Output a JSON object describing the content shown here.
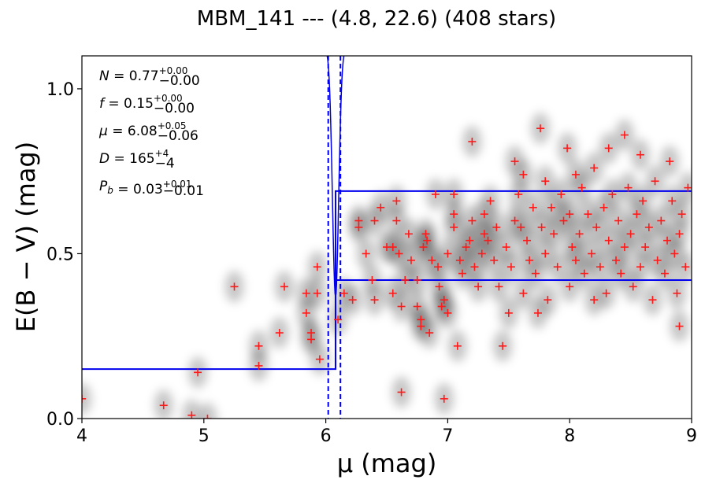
{
  "chart_data": {
    "type": "scatter",
    "title": "MBM_141 --- (4.8, 22.6) (408 stars)",
    "xlabel": "μ (mag)",
    "ylabel": "E(B − V) (mag)",
    "xlim": [
      4,
      9
    ],
    "ylim": [
      0,
      1.1
    ],
    "xticks": [
      "4",
      "5",
      "6",
      "7",
      "8",
      "9"
    ],
    "yticks": [
      "0.0",
      "0.5",
      "1.0"
    ],
    "grid": false,
    "colors": {
      "points": "#ff1a1a",
      "model": "#0000ee",
      "density": "#000000"
    },
    "annotations": [
      {
        "var": "N",
        "val": "0.77",
        "sup": "+0.00",
        "sub": "−0.00"
      },
      {
        "var": "f",
        "val": "0.15",
        "sup": "+0.00",
        "sub": "−0.00"
      },
      {
        "var": "μ",
        "val": "6.08",
        "sup": "+0.05",
        "sub": "−0.06"
      },
      {
        "var": "D",
        "val": "165",
        "sup": "+4",
        "sub": "−4"
      },
      {
        "var": "P",
        "varsub": "b",
        "val": "0.03",
        "sup": "+0.01",
        "sub": "−0.01"
      }
    ],
    "model_step": {
      "x": [
        4.0,
        6.08,
        6.08,
        9.0
      ],
      "y_center": [
        0.15,
        0.15,
        0.42,
        0.42
      ],
      "x_upper": [
        6.08,
        6.08,
        6.12,
        6.12,
        9.0
      ],
      "y_upper": [
        0.15,
        0.69,
        0.69,
        0.69,
        0.69
      ]
    },
    "vlines_dashed": [
      6.02,
      6.12
    ],
    "points": [
      [
        4.0,
        0.06
      ],
      [
        4.67,
        0.04
      ],
      [
        4.95,
        0.14
      ],
      [
        4.9,
        0.01
      ],
      [
        5.03,
        0.0
      ],
      [
        5.25,
        0.4
      ],
      [
        5.45,
        0.22
      ],
      [
        5.45,
        0.16
      ],
      [
        5.62,
        0.26
      ],
      [
        5.66,
        0.4
      ],
      [
        5.84,
        0.38
      ],
      [
        5.84,
        0.32
      ],
      [
        5.88,
        0.24
      ],
      [
        5.88,
        0.26
      ],
      [
        5.93,
        0.46
      ],
      [
        5.93,
        0.38
      ],
      [
        5.95,
        0.18
      ],
      [
        6.1,
        0.3
      ],
      [
        6.15,
        0.38
      ],
      [
        6.22,
        0.36
      ],
      [
        6.27,
        0.6
      ],
      [
        6.27,
        0.58
      ],
      [
        6.33,
        0.5
      ],
      [
        6.38,
        0.42
      ],
      [
        6.4,
        0.36
      ],
      [
        6.4,
        0.6
      ],
      [
        6.45,
        0.64
      ],
      [
        6.5,
        0.52
      ],
      [
        6.55,
        0.52
      ],
      [
        6.55,
        0.38
      ],
      [
        6.58,
        0.66
      ],
      [
        6.58,
        0.6
      ],
      [
        6.6,
        0.5
      ],
      [
        6.62,
        0.34
      ],
      [
        6.62,
        0.08
      ],
      [
        6.65,
        0.42
      ],
      [
        6.68,
        0.56
      ],
      [
        6.7,
        0.48
      ],
      [
        6.75,
        0.42
      ],
      [
        6.75,
        0.34
      ],
      [
        6.78,
        0.28
      ],
      [
        6.78,
        0.3
      ],
      [
        6.8,
        0.52
      ],
      [
        6.82,
        0.56
      ],
      [
        6.83,
        0.54
      ],
      [
        6.85,
        0.26
      ],
      [
        6.87,
        0.48
      ],
      [
        6.9,
        0.68
      ],
      [
        6.92,
        0.46
      ],
      [
        6.93,
        0.4
      ],
      [
        6.95,
        0.34
      ],
      [
        6.97,
        0.36
      ],
      [
        6.97,
        0.06
      ],
      [
        7.0,
        0.32
      ],
      [
        7.0,
        0.5
      ],
      [
        7.05,
        0.62
      ],
      [
        7.05,
        0.58
      ],
      [
        7.05,
        0.68
      ],
      [
        7.08,
        0.22
      ],
      [
        7.1,
        0.48
      ],
      [
        7.12,
        0.44
      ],
      [
        7.15,
        0.52
      ],
      [
        7.18,
        0.54
      ],
      [
        7.2,
        0.84
      ],
      [
        7.2,
        0.6
      ],
      [
        7.22,
        0.46
      ],
      [
        7.25,
        0.4
      ],
      [
        7.28,
        0.5
      ],
      [
        7.3,
        0.56
      ],
      [
        7.3,
        0.62
      ],
      [
        7.33,
        0.54
      ],
      [
        7.35,
        0.66
      ],
      [
        7.38,
        0.48
      ],
      [
        7.4,
        0.58
      ],
      [
        7.42,
        0.4
      ],
      [
        7.45,
        0.22
      ],
      [
        7.48,
        0.52
      ],
      [
        7.5,
        0.32
      ],
      [
        7.52,
        0.46
      ],
      [
        7.55,
        0.78
      ],
      [
        7.55,
        0.6
      ],
      [
        7.58,
        0.68
      ],
      [
        7.6,
        0.58
      ],
      [
        7.62,
        0.74
      ],
      [
        7.62,
        0.38
      ],
      [
        7.65,
        0.54
      ],
      [
        7.67,
        0.48
      ],
      [
        7.7,
        0.64
      ],
      [
        7.72,
        0.44
      ],
      [
        7.74,
        0.32
      ],
      [
        7.76,
        0.88
      ],
      [
        7.77,
        0.58
      ],
      [
        7.8,
        0.72
      ],
      [
        7.8,
        0.5
      ],
      [
        7.82,
        0.36
      ],
      [
        7.85,
        0.64
      ],
      [
        7.87,
        0.56
      ],
      [
        7.9,
        0.46
      ],
      [
        7.93,
        0.68
      ],
      [
        7.95,
        0.6
      ],
      [
        7.98,
        0.82
      ],
      [
        8.0,
        0.62
      ],
      [
        8.0,
        0.4
      ],
      [
        8.02,
        0.52
      ],
      [
        8.05,
        0.74
      ],
      [
        8.05,
        0.48
      ],
      [
        8.08,
        0.56
      ],
      [
        8.1,
        0.7
      ],
      [
        8.12,
        0.44
      ],
      [
        8.15,
        0.62
      ],
      [
        8.18,
        0.5
      ],
      [
        8.2,
        0.76
      ],
      [
        8.2,
        0.36
      ],
      [
        8.22,
        0.58
      ],
      [
        8.25,
        0.46
      ],
      [
        8.28,
        0.64
      ],
      [
        8.3,
        0.38
      ],
      [
        8.32,
        0.82
      ],
      [
        8.32,
        0.54
      ],
      [
        8.35,
        0.68
      ],
      [
        8.38,
        0.48
      ],
      [
        8.4,
        0.6
      ],
      [
        8.42,
        0.44
      ],
      [
        8.45,
        0.86
      ],
      [
        8.45,
        0.52
      ],
      [
        8.48,
        0.7
      ],
      [
        8.5,
        0.56
      ],
      [
        8.52,
        0.4
      ],
      [
        8.55,
        0.62
      ],
      [
        8.58,
        0.8
      ],
      [
        8.58,
        0.46
      ],
      [
        8.6,
        0.66
      ],
      [
        8.62,
        0.52
      ],
      [
        8.65,
        0.58
      ],
      [
        8.68,
        0.36
      ],
      [
        8.7,
        0.72
      ],
      [
        8.72,
        0.48
      ],
      [
        8.75,
        0.6
      ],
      [
        8.78,
        0.44
      ],
      [
        8.8,
        0.54
      ],
      [
        8.82,
        0.78
      ],
      [
        8.84,
        0.66
      ],
      [
        8.86,
        0.5
      ],
      [
        8.88,
        0.38
      ],
      [
        8.9,
        0.28
      ],
      [
        8.9,
        0.56
      ],
      [
        8.92,
        0.62
      ],
      [
        8.95,
        0.46
      ],
      [
        8.97,
        0.7
      ]
    ]
  }
}
